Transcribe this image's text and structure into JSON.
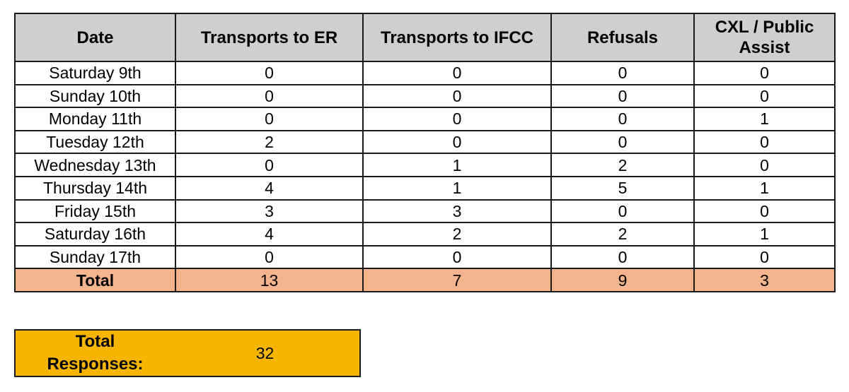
{
  "table": {
    "headers": [
      "Date",
      "Transports to ER",
      "Transports to IFCC",
      "Refusals",
      "CXL / Public Assist"
    ],
    "rows": [
      [
        "Saturday 9th",
        "0",
        "0",
        "0",
        "0"
      ],
      [
        "Sunday 10th",
        "0",
        "0",
        "0",
        "0"
      ],
      [
        "Monday 11th",
        "0",
        "0",
        "0",
        "1"
      ],
      [
        "Tuesday 12th",
        "2",
        "0",
        "0",
        "0"
      ],
      [
        "Wednesday 13th",
        "0",
        "1",
        "2",
        "0"
      ],
      [
        "Thursday 14th",
        "4",
        "1",
        "5",
        "1"
      ],
      [
        "Friday 15th",
        "3",
        "3",
        "0",
        "0"
      ],
      [
        "Saturday 16th",
        "4",
        "2",
        "2",
        "1"
      ],
      [
        "Sunday 17th",
        "0",
        "0",
        "0",
        "0"
      ]
    ],
    "total": [
      "Total",
      "13",
      "7",
      "9",
      "3"
    ]
  },
  "summary": {
    "label": "Total\nResponses:",
    "value": "32"
  },
  "colors": {
    "header_bg": "#cfcfcf",
    "total_row_bg": "#f3b48e",
    "summary_bg": "#f7b500"
  }
}
